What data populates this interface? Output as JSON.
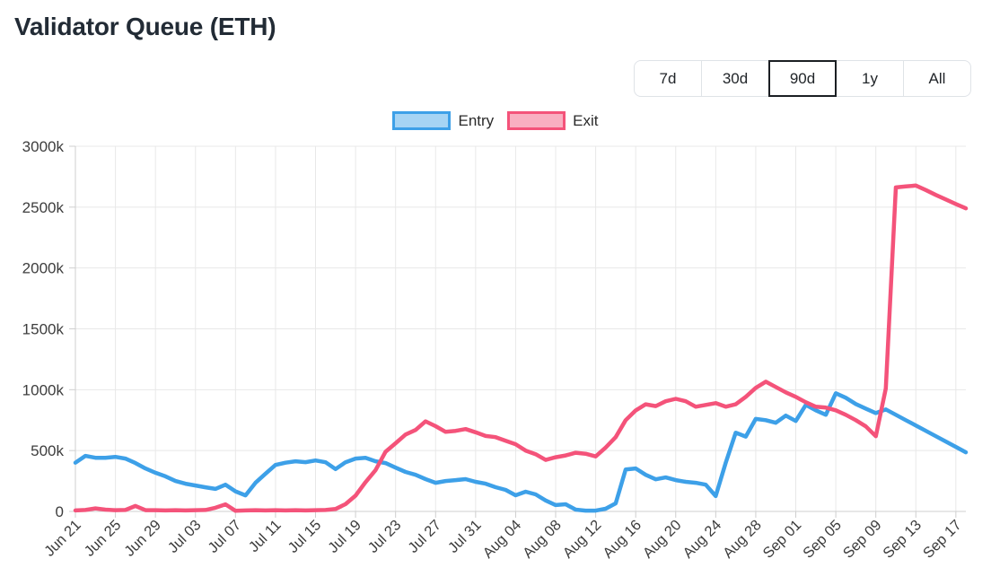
{
  "page": {
    "title": "Validator Queue (ETH)"
  },
  "range_buttons": [
    {
      "label": "7d",
      "selected": false
    },
    {
      "label": "30d",
      "selected": false
    },
    {
      "label": "90d",
      "selected": true
    },
    {
      "label": "1y",
      "selected": false
    },
    {
      "label": "All",
      "selected": false
    }
  ],
  "legend": [
    {
      "label": "Entry",
      "line_color": "#3da0e8",
      "fill_color": "#a6d4f4"
    },
    {
      "label": "Exit",
      "line_color": "#f4537a",
      "fill_color": "#f9afc1"
    }
  ],
  "chart_data": {
    "type": "line",
    "title": "Validator Queue (ETH)",
    "grid": true,
    "legend_position": "top",
    "y_unit": "thousand ETH (k)",
    "ylim": [
      0,
      3000
    ],
    "y_ticks": [
      0,
      500,
      1000,
      1500,
      2000,
      2500,
      3000
    ],
    "y_tick_labels": [
      "0",
      "500k",
      "1000k",
      "1500k",
      "2000k",
      "2500k",
      "3000k"
    ],
    "x_tick_interval": 4,
    "x_tick_labels": [
      "Jun 21",
      "Jun 25",
      "Jun 29",
      "Jul 03",
      "Jul 07",
      "Jul 11",
      "Jul 15",
      "Jul 19",
      "Jul 23",
      "Jul 27",
      "Jul 31",
      "Aug 04",
      "Aug 08",
      "Aug 12",
      "Aug 16",
      "Aug 20",
      "Aug 24",
      "Aug 28",
      "Sep 01",
      "Sep 05",
      "Sep 09",
      "Sep 13",
      "Sep 17"
    ],
    "x": [
      "Jun 21",
      "Jun 22",
      "Jun 23",
      "Jun 24",
      "Jun 25",
      "Jun 26",
      "Jun 27",
      "Jun 28",
      "Jun 29",
      "Jun 30",
      "Jul 01",
      "Jul 02",
      "Jul 03",
      "Jul 04",
      "Jul 05",
      "Jul 06",
      "Jul 07",
      "Jul 08",
      "Jul 09",
      "Jul 10",
      "Jul 11",
      "Jul 12",
      "Jul 13",
      "Jul 14",
      "Jul 15",
      "Jul 16",
      "Jul 17",
      "Jul 18",
      "Jul 19",
      "Jul 20",
      "Jul 21",
      "Jul 22",
      "Jul 23",
      "Jul 24",
      "Jul 25",
      "Jul 26",
      "Jul 27",
      "Jul 28",
      "Jul 29",
      "Jul 30",
      "Jul 31",
      "Aug 01",
      "Aug 02",
      "Aug 03",
      "Aug 04",
      "Aug 05",
      "Aug 06",
      "Aug 07",
      "Aug 08",
      "Aug 09",
      "Aug 10",
      "Aug 11",
      "Aug 12",
      "Aug 13",
      "Aug 14",
      "Aug 15",
      "Aug 16",
      "Aug 17",
      "Aug 18",
      "Aug 19",
      "Aug 20",
      "Aug 21",
      "Aug 22",
      "Aug 23",
      "Aug 24",
      "Aug 25",
      "Aug 26",
      "Aug 27",
      "Aug 28",
      "Aug 29",
      "Aug 30",
      "Aug 31",
      "Sep 01",
      "Sep 02",
      "Sep 03",
      "Sep 04",
      "Sep 05",
      "Sep 06",
      "Sep 07",
      "Sep 08",
      "Sep 09",
      "Sep 10",
      "Sep 11",
      "Sep 12",
      "Sep 13",
      "Sep 14",
      "Sep 15",
      "Sep 16",
      "Sep 17",
      "Sep 18"
    ],
    "series": [
      {
        "name": "Entry",
        "color": "#3da0e8",
        "values": [
          400,
          456,
          441,
          441,
          448,
          434,
          397,
          353,
          318,
          288,
          250,
          228,
          213,
          198,
          185,
          220,
          165,
          132,
          235,
          310,
          382,
          400,
          412,
          405,
          419,
          404,
          348,
          404,
          434,
          440,
          412,
          397,
          360,
          324,
          301,
          265,
          235,
          250,
          257,
          265,
          243,
          228,
          199,
          177,
          133,
          162,
          140,
          90,
          52,
          59,
          15,
          7,
          7,
          22,
          66,
          345,
          353,
          301,
          264,
          279,
          257,
          243,
          235,
          220,
          126,
          400,
          647,
          615,
          760,
          750,
          728,
          787,
          743,
          875,
          831,
          794,
          971,
          934,
          882,
          845,
          808,
          838,
          794,
          750,
          706,
          662,
          618,
          574,
          530,
          486
        ]
      },
      {
        "name": "Exit",
        "color": "#f4537a",
        "values": [
          8,
          12,
          25,
          15,
          10,
          12,
          45,
          10,
          10,
          8,
          10,
          8,
          10,
          12,
          30,
          58,
          5,
          8,
          10,
          8,
          10,
          8,
          10,
          8,
          10,
          12,
          20,
          60,
          130,
          240,
          340,
          490,
          560,
          632,
          669,
          740,
          700,
          654,
          662,
          677,
          650,
          620,
          610,
          580,
          552,
          500,
          470,
          423,
          445,
          460,
          482,
          474,
          452,
          525,
          610,
          750,
          830,
          880,
          865,
          905,
          925,
          905,
          860,
          875,
          890,
          860,
          880,
          941,
          1015,
          1066,
          1022,
          978,
          941,
          897,
          860,
          853,
          831,
          794,
          750,
          699,
          618,
          1010,
          2662,
          2670,
          2677,
          2640,
          2600,
          2563,
          2525,
          2490
        ]
      }
    ]
  }
}
